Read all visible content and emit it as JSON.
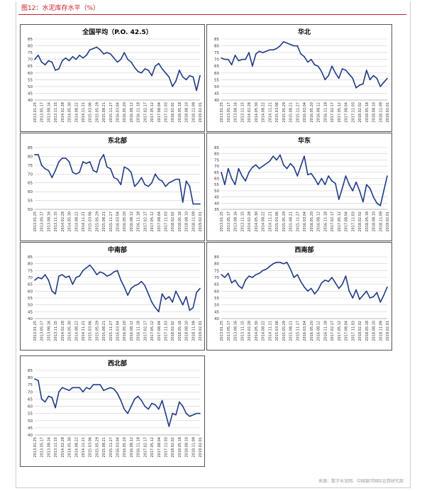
{
  "figure": {
    "title": "图12：水泥库存水平（%）",
    "source": "来源：数字水泥网、中国银河国际证券研究部"
  },
  "colors": {
    "line": "#1f3b86",
    "grid": "#cfcfcf",
    "accent": "#c8202a"
  },
  "chart_data": [
    {
      "type": "line",
      "title": "全国平均（P.O. 42.5）",
      "ylim": [
        40,
        85
      ],
      "yticks": [
        40,
        45,
        50,
        55,
        60,
        65,
        70,
        75,
        80,
        85
      ],
      "x_ticks": [
        "2013.01.25",
        "2013.05.17",
        "2013.08.16",
        "2013.11.15",
        "2014.02.28",
        "2014.05.30",
        "2014.08.22",
        "2014.11.21",
        "2015.03.06",
        "2015.05.29",
        "2015.08.21",
        "2015.11.27",
        "2016.03.04",
        "2016.05.20",
        "2016.08.12",
        "2016.11.18",
        "2017.02.17",
        "2017.05.12",
        "2017.08.04",
        "2017.11.03",
        "2018.02.02",
        "2018.05.18",
        "2018.08.10",
        "2018.11.09",
        "2019.02.01"
      ],
      "x": [
        0,
        0.5,
        1,
        1.5,
        2,
        2.5,
        3,
        3.5,
        4,
        4.5,
        5,
        5.5,
        6,
        6.5,
        7,
        7.5,
        8,
        8.5,
        9,
        9.5,
        10,
        10.5,
        11,
        11.5,
        12,
        12.5,
        13,
        13.5,
        14,
        14.5,
        15,
        15.5,
        16,
        16.5,
        17,
        17.5,
        18,
        18.5,
        19,
        19.5,
        20,
        20.5,
        21,
        21.5,
        22,
        22.5,
        23,
        23.5,
        24
      ],
      "values": [
        70,
        73,
        68,
        66,
        69,
        68,
        62,
        63,
        69,
        71,
        69,
        72,
        70,
        73,
        71,
        73,
        77,
        78,
        79,
        77,
        74,
        75,
        74,
        71,
        68,
        70,
        75,
        70,
        68,
        64,
        61,
        60,
        63,
        62,
        58,
        65,
        67,
        63,
        60,
        57,
        50,
        54,
        62,
        57,
        55,
        58,
        57,
        47,
        58
      ]
    },
    {
      "type": "line",
      "title": "华北",
      "ylim": [
        40,
        85
      ],
      "yticks": [
        40,
        45,
        50,
        55,
        60,
        65,
        70,
        75,
        80,
        85
      ],
      "x_ticks": [
        "2013.01.25",
        "2013.05.17",
        "2013.08.16",
        "2013.11.15",
        "2014.02.28",
        "2014.05.30",
        "2014.08.22",
        "2014.11.21",
        "2015.03.06",
        "2015.05.29",
        "2015.08.21",
        "2015.11.27",
        "2016.03.04",
        "2016.05.20",
        "2016.08.12",
        "2016.11.18",
        "2017.02.17",
        "2017.05.12",
        "2017.08.04",
        "2017.11.03",
        "2018.02.02",
        "2018.05.18",
        "2018.08.10",
        "2018.11.09",
        "2019.02.01"
      ],
      "x": [
        0,
        0.5,
        1,
        1.5,
        2,
        2.5,
        3,
        3.5,
        4,
        4.5,
        5,
        5.5,
        6,
        6.5,
        7,
        7.5,
        8,
        8.5,
        9,
        9.5,
        10,
        10.5,
        11,
        11.5,
        12,
        12.5,
        13,
        13.5,
        14,
        14.5,
        15,
        15.5,
        16,
        16.5,
        17,
        17.5,
        18,
        18.5,
        19,
        19.5,
        20,
        20.5,
        21,
        21.5,
        22,
        22.5,
        23,
        23.5,
        24
      ],
      "values": [
        71,
        70,
        70,
        66,
        73,
        69,
        70,
        70,
        75,
        65,
        74,
        76,
        75,
        76,
        77,
        77,
        78,
        80,
        83,
        82,
        81,
        80,
        80,
        74,
        72,
        68,
        70,
        66,
        65,
        61,
        55,
        58,
        65,
        60,
        56,
        63,
        62,
        59,
        56,
        49,
        51,
        52,
        62,
        55,
        58,
        56,
        50,
        53,
        56
      ]
    },
    {
      "type": "line",
      "title": "东北部",
      "ylim": [
        50,
        85
      ],
      "yticks": [
        50,
        55,
        60,
        65,
        70,
        75,
        80,
        85
      ],
      "x_ticks": [
        "2013.01.25",
        "2013.05.17",
        "2013.08.16",
        "2013.11.15",
        "2014.02.28",
        "2014.05.30",
        "2014.08.22",
        "2014.11.21",
        "2015.03.06",
        "2015.05.29",
        "2015.08.21",
        "2015.11.27",
        "2016.03.04",
        "2016.05.20",
        "2016.08.12",
        "2016.11.18",
        "2017.02.17",
        "2017.05.12",
        "2017.08.04",
        "2017.11.03",
        "2018.02.02",
        "2018.05.18",
        "2018.08.10",
        "2018.11.09",
        "2019.02.01"
      ],
      "x": [
        0,
        0.5,
        1,
        1.5,
        2,
        2.5,
        3,
        3.5,
        4,
        4.5,
        5,
        5.5,
        6,
        6.5,
        7,
        7.5,
        8,
        8.5,
        9,
        9.5,
        10,
        10.5,
        11,
        11.5,
        12,
        12.5,
        13,
        13.5,
        14,
        14.5,
        15,
        15.5,
        16,
        16.5,
        17,
        17.5,
        18,
        18.5,
        19,
        19.5,
        20,
        20.5,
        21,
        21.5,
        22,
        22.5,
        23,
        23.5,
        24
      ],
      "values": [
        81,
        81,
        75,
        73,
        72,
        68,
        72,
        77,
        79,
        79,
        77,
        71,
        70,
        71,
        77,
        76,
        77,
        72,
        71,
        78,
        81,
        74,
        73,
        68,
        67,
        64,
        74,
        73,
        71,
        63,
        65,
        68,
        64,
        63,
        65,
        70,
        67,
        66,
        63,
        65,
        66,
        67,
        67,
        54,
        66,
        63,
        53,
        53,
        53
      ]
    },
    {
      "type": "line",
      "title": "华东",
      "ylim": [
        35,
        85
      ],
      "yticks": [
        35,
        40,
        45,
        50,
        55,
        60,
        65,
        70,
        75,
        80,
        85
      ],
      "x_ticks": [
        "2013.01.25",
        "2013.05.17",
        "2013.08.16",
        "2013.11.15",
        "2014.02.28",
        "2014.05.30",
        "2014.08.22",
        "2014.11.21",
        "2015.03.06",
        "2015.05.29",
        "2015.08.21",
        "2015.11.27",
        "2016.03.04",
        "2016.05.20",
        "2016.08.12",
        "2016.11.18",
        "2017.02.17",
        "2017.05.12",
        "2017.08.04",
        "2017.11.03",
        "2018.02.02",
        "2018.05.18",
        "2018.08.10",
        "2018.11.09",
        "2019.02.01"
      ],
      "x": [
        0,
        0.5,
        1,
        1.5,
        2,
        2.5,
        3,
        3.5,
        4,
        4.5,
        5,
        5.5,
        6,
        6.5,
        7,
        7.5,
        8,
        8.5,
        9,
        9.5,
        10,
        10.5,
        11,
        11.5,
        12,
        12.5,
        13,
        13.5,
        14,
        14.5,
        15,
        15.5,
        16,
        16.5,
        17,
        17.5,
        18,
        18.5,
        19,
        19.5,
        20,
        20.5,
        21,
        21.5,
        22,
        22.5,
        23,
        23.5,
        24
      ],
      "values": [
        65,
        55,
        68,
        60,
        55,
        68,
        62,
        58,
        65,
        69,
        71,
        68,
        70,
        72,
        74,
        78,
        75,
        79,
        71,
        68,
        72,
        69,
        62,
        70,
        78,
        63,
        64,
        60,
        55,
        60,
        55,
        62,
        58,
        56,
        43,
        52,
        62,
        55,
        50,
        57,
        50,
        41,
        55,
        52,
        45,
        40,
        38,
        50,
        62
      ]
    },
    {
      "type": "line",
      "title": "中南部",
      "ylim": [
        40,
        85
      ],
      "yticks": [
        40,
        45,
        50,
        55,
        60,
        65,
        70,
        75,
        80,
        85
      ],
      "x_ticks": [
        "2013.01.25",
        "2013.05.17",
        "2013.08.16",
        "2013.11.15",
        "2014.02.28",
        "2014.05.30",
        "2014.08.22",
        "2014.11.21",
        "2015.03.06",
        "2015.05.29",
        "2015.08.21",
        "2015.11.27",
        "2016.03.04",
        "2016.05.20",
        "2016.08.12",
        "2016.11.18",
        "2017.02.17",
        "2017.05.12",
        "2017.08.04",
        "2017.11.03",
        "2018.02.02",
        "2018.05.18",
        "2018.08.10",
        "2018.11.09",
        "2019.02.01"
      ],
      "x": [
        0,
        0.5,
        1,
        1.5,
        2,
        2.5,
        3,
        3.5,
        4,
        4.5,
        5,
        5.5,
        6,
        6.5,
        7,
        7.5,
        8,
        8.5,
        9,
        9.5,
        10,
        10.5,
        11,
        11.5,
        12,
        12.5,
        13,
        13.5,
        14,
        14.5,
        15,
        15.5,
        16,
        16.5,
        17,
        17.5,
        18,
        18.5,
        19,
        19.5,
        20,
        20.5,
        21,
        21.5,
        22,
        22.5,
        23,
        23.5,
        24
      ],
      "values": [
        68,
        70,
        69,
        72,
        68,
        60,
        58,
        71,
        72,
        70,
        71,
        65,
        70,
        71,
        75,
        77,
        79,
        76,
        72,
        74,
        73,
        71,
        72,
        74,
        75,
        68,
        63,
        57,
        62,
        64,
        65,
        67,
        64,
        58,
        52,
        48,
        45,
        58,
        54,
        56,
        52,
        60,
        55,
        50,
        56,
        46,
        48,
        59,
        62
      ]
    },
    {
      "type": "line",
      "title": "西南部",
      "ylim": [
        40,
        85
      ],
      "yticks": [
        40,
        45,
        50,
        55,
        60,
        65,
        70,
        75,
        80,
        85
      ],
      "x_ticks": [
        "2013.01.25",
        "2013.05.17",
        "2013.08.16",
        "2013.11.15",
        "2014.02.28",
        "2014.05.30",
        "2014.08.22",
        "2014.11.21",
        "2015.03.06",
        "2015.05.29",
        "2015.08.21",
        "2015.11.27",
        "2016.03.04",
        "2016.05.20",
        "2016.08.12",
        "2016.11.18",
        "2017.02.17",
        "2017.05.12",
        "2017.08.04",
        "2017.11.03",
        "2018.02.02",
        "2018.05.18",
        "2018.08.10",
        "2018.11.09",
        "2019.02.01"
      ],
      "x": [
        0,
        0.5,
        1,
        1.5,
        2,
        2.5,
        3,
        3.5,
        4,
        4.5,
        5,
        5.5,
        6,
        6.5,
        7,
        7.5,
        8,
        8.5,
        9,
        9.5,
        10,
        10.5,
        11,
        11.5,
        12,
        12.5,
        13,
        13.5,
        14,
        14.5,
        15,
        15.5,
        16,
        16.5,
        17,
        17.5,
        18,
        18.5,
        19,
        19.5,
        20,
        20.5,
        21,
        21.5,
        22,
        22.5,
        23,
        23.5,
        24
      ],
      "values": [
        72,
        70,
        73,
        66,
        68,
        64,
        62,
        68,
        71,
        70,
        72,
        73,
        75,
        76,
        78,
        80,
        81,
        81,
        80,
        81,
        76,
        70,
        72,
        67,
        63,
        60,
        62,
        58,
        61,
        66,
        68,
        67,
        70,
        66,
        62,
        65,
        71,
        60,
        55,
        61,
        54,
        57,
        60,
        55,
        56,
        59,
        52,
        57,
        63
      ]
    },
    {
      "type": "line",
      "title": "西北部",
      "ylim": [
        40,
        85
      ],
      "yticks": [
        40,
        45,
        50,
        55,
        60,
        65,
        70,
        75,
        80,
        85
      ],
      "x_ticks": [
        "2013.01.25",
        "2013.05.17",
        "2013.08.16",
        "2013.11.15",
        "2014.02.28",
        "2014.05.30",
        "2014.08.22",
        "2014.11.21",
        "2015.03.06",
        "2015.05.29",
        "2015.08.21",
        "2015.11.27",
        "2016.03.04",
        "2016.05.20",
        "2016.08.12",
        "2016.11.18",
        "2017.02.17",
        "2017.05.12",
        "2017.08.04",
        "2017.11.03",
        "2018.02.02",
        "2018.05.18",
        "2018.08.10",
        "2018.11.09",
        "2019.02.01"
      ],
      "x": [
        0,
        0.5,
        1,
        1.5,
        2,
        2.5,
        3,
        3.5,
        4,
        4.5,
        5,
        5.5,
        6,
        6.5,
        7,
        7.5,
        8,
        8.5,
        9,
        9.5,
        10,
        10.5,
        11,
        11.5,
        12,
        12.5,
        13,
        13.5,
        14,
        14.5,
        15,
        15.5,
        16,
        16.5,
        17,
        17.5,
        18,
        18.5,
        19,
        19.5,
        20,
        20.5,
        21,
        21.5,
        22,
        22.5,
        23,
        23.5,
        24
      ],
      "values": [
        79,
        78,
        65,
        63,
        67,
        66,
        59,
        70,
        73,
        72,
        71,
        73,
        73,
        73,
        70,
        73,
        72,
        75,
        75,
        75,
        71,
        72,
        73,
        72,
        69,
        64,
        58,
        55,
        60,
        65,
        67,
        64,
        60,
        58,
        62,
        61,
        58,
        64,
        55,
        46,
        55,
        54,
        63,
        60,
        55,
        53,
        54,
        55,
        55
      ]
    }
  ]
}
